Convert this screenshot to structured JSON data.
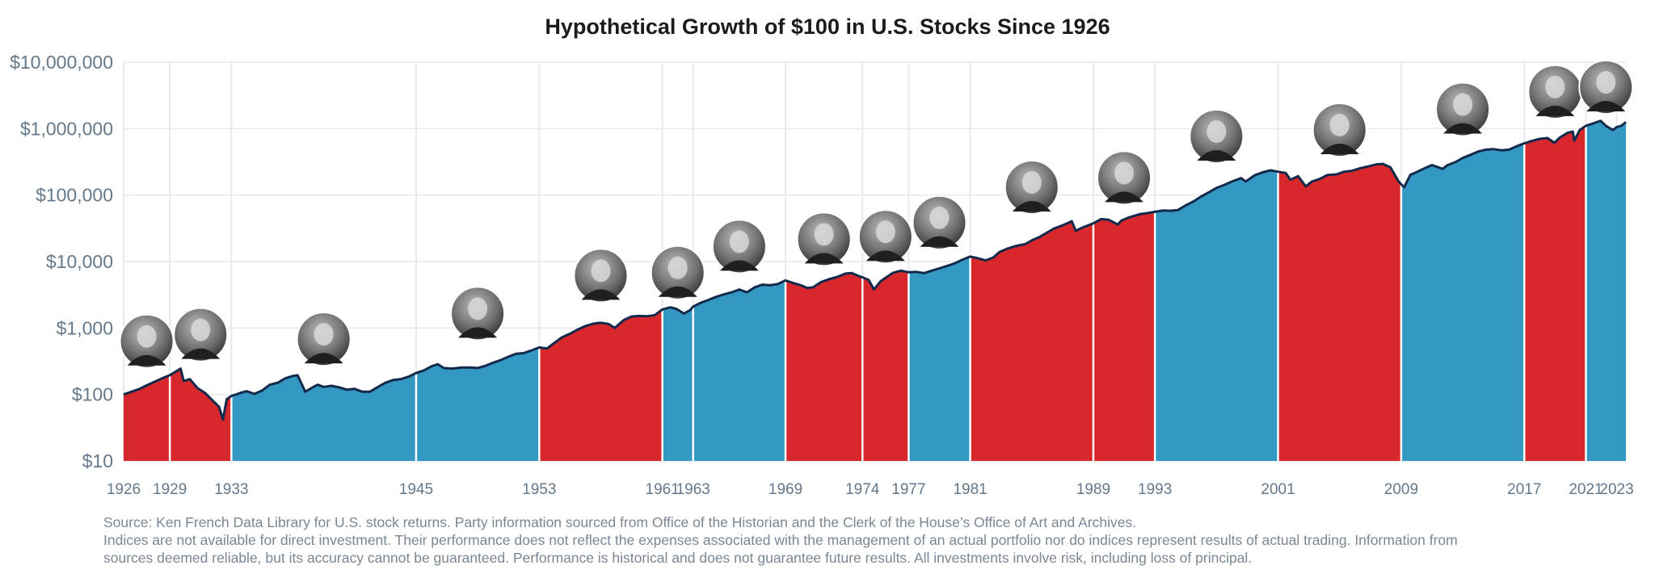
{
  "chart_data": {
    "type": "area",
    "title": "Hypothetical Growth of $100 in U.S. Stocks Since 1926",
    "xlabel": "",
    "ylabel": "",
    "y_scale": "log",
    "ylim": [
      10,
      10000000
    ],
    "xlim": [
      1926,
      2023.6
    ],
    "grid": true,
    "y_ticks": [
      {
        "value": 10,
        "label": "$10"
      },
      {
        "value": 100,
        "label": "$100"
      },
      {
        "value": 1000,
        "label": "$1,000"
      },
      {
        "value": 10000,
        "label": "$10,000"
      },
      {
        "value": 100000,
        "label": "$100,000"
      },
      {
        "value": 1000000,
        "label": "$1,000,000"
      },
      {
        "value": 10000000,
        "label": "$10,000,000"
      }
    ],
    "x_ticks": [
      1926,
      1929,
      1933,
      1945,
      1953,
      1961,
      1963,
      1969,
      1974,
      1977,
      1981,
      1989,
      1993,
      2001,
      2009,
      2017,
      2021,
      2023
    ],
    "colors": {
      "red": "#d9282b",
      "blue": "#3399c2",
      "line": "#13294b",
      "grid": "#e6e9ee"
    },
    "series": [
      {
        "x": [
          1926,
          1926.5,
          1927,
          1927.5,
          1928,
          1928.5,
          1929,
          1929.7,
          1929.9,
          1930.3,
          1930.8,
          1931.3,
          1931.8,
          1932.2,
          1932.45,
          1932.7,
          1933.0,
          1933.3,
          1933.6,
          1934.0,
          1934.5,
          1935.0,
          1935.5,
          1936.0,
          1936.5,
          1937.0,
          1937.3,
          1937.8,
          1938.2,
          1938.6,
          1939.0,
          1939.5,
          1940.0,
          1940.5,
          1941.0,
          1941.5,
          1942.0,
          1942.4,
          1943.0,
          1943.5,
          1944.0,
          1944.5,
          1945.0,
          1945.5,
          1946.0,
          1946.4,
          1946.8,
          1947.3,
          1948.0,
          1948.5,
          1949.0,
          1949.5,
          1950.0,
          1950.5,
          1951.0,
          1951.5,
          1952.0,
          1952.5,
          1953.0,
          1953.5,
          1954.0,
          1954.5,
          1955.0,
          1955.5,
          1956.0,
          1956.5,
          1957.0,
          1957.5,
          1957.9,
          1958.5,
          1959.0,
          1959.5,
          1960.0,
          1960.5,
          1961.0,
          1961.5,
          1961.9,
          1962.4,
          1962.8,
          1963.0,
          1963.5,
          1964.0,
          1964.5,
          1965.0,
          1965.5,
          1966.0,
          1966.5,
          1967.0,
          1967.5,
          1968.0,
          1968.5,
          1969.0,
          1969.5,
          1970.0,
          1970.4,
          1970.8,
          1971.3,
          1971.8,
          1972.3,
          1972.9,
          1973.3,
          1973.8,
          1974.0,
          1974.4,
          1974.75,
          1975.2,
          1975.6,
          1976.0,
          1976.5,
          1977.0,
          1977.5,
          1978.0,
          1978.5,
          1979.0,
          1979.5,
          1980.0,
          1980.5,
          1981.0,
          1981.5,
          1982.0,
          1982.5,
          1982.9,
          1983.4,
          1984.0,
          1984.6,
          1985.0,
          1985.5,
          1986.0,
          1986.5,
          1987.0,
          1987.6,
          1987.85,
          1988.3,
          1989.0,
          1989.5,
          1990.0,
          1990.6,
          1990.8,
          1991.3,
          1992.0,
          1992.5,
          1993.0,
          1993.5,
          1994.0,
          1994.5,
          1995.0,
          1995.5,
          1996.0,
          1996.5,
          1997.0,
          1997.5,
          1998.0,
          1998.6,
          1998.9,
          1999.5,
          2000.0,
          2000.5,
          2001.0,
          2001.5,
          2001.8,
          2002.3,
          2002.8,
          2003.2,
          2003.7,
          2004.2,
          2004.8,
          2005.3,
          2005.8,
          2006.3,
          2006.9,
          2007.4,
          2007.8,
          2008.3,
          2008.8,
          2009.0,
          2009.2,
          2009.6,
          2010.0,
          2010.5,
          2011.0,
          2011.7,
          2012.0,
          2012.5,
          2013.0,
          2013.5,
          2014.0,
          2014.5,
          2015.0,
          2015.5,
          2016.0,
          2016.5,
          2017.0,
          2017.5,
          2018.0,
          2018.5,
          2018.95,
          2019.3,
          2019.8,
          2020.15,
          2020.25,
          2020.6,
          2021.0,
          2021.5,
          2021.95,
          2022.3,
          2022.75,
          2023.0,
          2023.3,
          2023.6
        ],
        "y": [
          100,
          110,
          120,
          137,
          155,
          175,
          195,
          245,
          160,
          170,
          125,
          105,
          80,
          65,
          42,
          85,
          95,
          100,
          106,
          112,
          102,
          115,
          140,
          150,
          175,
          190,
          195,
          110,
          125,
          140,
          130,
          135,
          128,
          118,
          122,
          110,
          110,
          125,
          150,
          165,
          170,
          185,
          210,
          230,
          265,
          285,
          250,
          245,
          255,
          255,
          250,
          270,
          300,
          330,
          370,
          410,
          420,
          460,
          510,
          490,
          600,
          730,
          820,
          950,
          1070,
          1160,
          1200,
          1150,
          1000,
          1320,
          1490,
          1520,
          1500,
          1560,
          1900,
          2050,
          1950,
          1650,
          1850,
          2100,
          2400,
          2650,
          2950,
          3200,
          3450,
          3800,
          3450,
          4100,
          4500,
          4400,
          4600,
          5200,
          4750,
          4400,
          4000,
          4100,
          4900,
          5400,
          5800,
          6600,
          6700,
          6000,
          5800,
          5300,
          3800,
          5100,
          5900,
          6800,
          7300,
          6900,
          7000,
          6700,
          7300,
          7900,
          8600,
          9400,
          10700,
          11900,
          11200,
          10400,
          11500,
          13900,
          15600,
          17200,
          18400,
          20800,
          23400,
          27300,
          31800,
          35000,
          40500,
          29000,
          32500,
          37500,
          43500,
          42400,
          36000,
          41000,
          46000,
          51500,
          53500,
          56000,
          58500,
          58000,
          59500,
          70000,
          80000,
          95000,
          110000,
          128000,
          142000,
          160000,
          180000,
          160000,
          200000,
          220000,
          236000,
          225000,
          215000,
          170000,
          193000,
          135000,
          160000,
          175000,
          200000,
          205000,
          225000,
          232000,
          252000,
          272000,
          290000,
          295000,
          262000,
          165000,
          145000,
          132000,
          202000,
          222000,
          252000,
          283000,
          248000,
          282000,
          312000,
          362000,
          403000,
          452000,
          482000,
          492000,
          472000,
          482000,
          542000,
          602000,
          652000,
          702000,
          722000,
          612000,
          732000,
          862000,
          902000,
          662000,
          952000,
          1103000,
          1203000,
          1313000,
          1103000,
          952000,
          1053000,
          1103000,
          1253000
        ]
      }
    ],
    "president_terms": [
      {
        "start": 1926,
        "end": 1929,
        "party": "Republican"
      },
      {
        "start": 1929,
        "end": 1933,
        "party": "Republican"
      },
      {
        "start": 1933,
        "end": 1945,
        "party": "Democratic"
      },
      {
        "start": 1945,
        "end": 1953,
        "party": "Democratic"
      },
      {
        "start": 1953,
        "end": 1961,
        "party": "Republican"
      },
      {
        "start": 1961,
        "end": 1963,
        "party": "Democratic"
      },
      {
        "start": 1963,
        "end": 1969,
        "party": "Democratic"
      },
      {
        "start": 1969,
        "end": 1974,
        "party": "Republican"
      },
      {
        "start": 1974,
        "end": 1977,
        "party": "Republican"
      },
      {
        "start": 1977,
        "end": 1981,
        "party": "Democratic"
      },
      {
        "start": 1981,
        "end": 1989,
        "party": "Republican"
      },
      {
        "start": 1989,
        "end": 1993,
        "party": "Republican"
      },
      {
        "start": 1993,
        "end": 2001,
        "party": "Democratic"
      },
      {
        "start": 2001,
        "end": 2009,
        "party": "Republican"
      },
      {
        "start": 2009,
        "end": 2017,
        "party": "Democratic"
      },
      {
        "start": 2017,
        "end": 2021,
        "party": "Republican"
      },
      {
        "start": 2021,
        "end": 2023.6,
        "party": "Democratic"
      }
    ]
  },
  "notes": {
    "source": "Source: Ken French Data Library for U.S. stock returns. Party information sourced from Office of the Historian and the Clerk of the House’s Office of Art and Archives.",
    "disclaimer_line1": "Indices are not available for direct investment. Their performance does not reflect the expenses associated with the management of an actual portfolio nor do indices represent results of actual trading. Information from",
    "disclaimer_line2": "sources deemed reliable, but its accuracy cannot be guaranteed. Performance is historical and does not guarantee future results. All investments involve risk, including loss of principal."
  }
}
